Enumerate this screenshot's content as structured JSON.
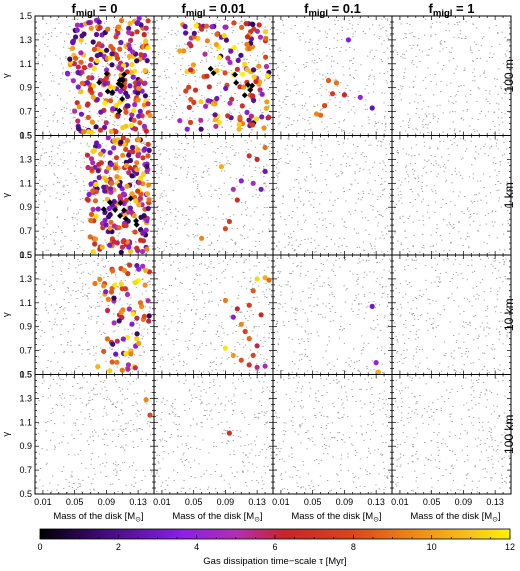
{
  "chart_data": {
    "type": "scatter",
    "column_titles": [
      {
        "base": "f",
        "sub": "migl",
        "rest": " = 0"
      },
      {
        "base": "f",
        "sub": "migl",
        "rest": " = 0.01"
      },
      {
        "base": "f",
        "sub": "migl",
        "rest": " = 0.1"
      },
      {
        "base": "f",
        "sub": "migl",
        "rest": " = 1"
      }
    ],
    "row_titles": [
      "100 m",
      "1 km",
      "10 km",
      "100 km"
    ],
    "xlabel": {
      "main": "Mass of the disk [M",
      "sub": "⊙",
      "close": "]"
    },
    "ylabel": "γ",
    "xlim": [
      0.0,
      0.15
    ],
    "ylim": [
      0.5,
      1.5
    ],
    "x_tick_labels": [
      "0.01",
      "0.05",
      "0.09",
      "0.13"
    ],
    "x_tick_values": [
      0.01,
      0.05,
      0.09,
      0.13
    ],
    "y_tick_labels": [
      "0.5",
      "0.7",
      "0.9",
      "1.1",
      "1.3",
      "1.5"
    ],
    "y_tick_values": [
      0.5,
      0.7,
      0.9,
      1.1,
      1.3,
      1.5
    ],
    "colorbar": {
      "label": "Gas dissipation time−scale τ [Myr]",
      "range": [
        0,
        12
      ],
      "tick_labels": [
        "0",
        "2",
        "4",
        "6",
        "8",
        "10",
        "12"
      ],
      "tick_values": [
        0,
        2,
        4,
        6,
        8,
        10,
        12
      ]
    },
    "panels": [
      {
        "row": 0,
        "col": 0,
        "n_points": 260,
        "x_range": [
          0.04,
          0.145
        ],
        "y_range": [
          0.5,
          1.5
        ],
        "n_diamonds": 12,
        "diamond_x_range": [
          0.075,
          0.12
        ],
        "diamond_y_range": [
          0.7,
          1.05
        ]
      },
      {
        "row": 0,
        "col": 1,
        "n_points": 150,
        "x_range": [
          0.03,
          0.145
        ],
        "y_range": [
          0.55,
          1.45
        ],
        "n_diamonds": 8,
        "diamond_x_range": [
          0.07,
          0.125
        ],
        "diamond_y_range": [
          0.8,
          1.1
        ]
      },
      {
        "row": 0,
        "col": 2,
        "points": [
          [
            0.07,
            0.96
          ],
          [
            0.08,
            0.94
          ],
          [
            0.075,
            0.85
          ],
          [
            0.065,
            0.75
          ],
          [
            0.055,
            0.68
          ],
          [
            0.06,
            0.67
          ],
          [
            0.09,
            0.84
          ],
          [
            0.11,
            0.82
          ],
          [
            0.095,
            1.3
          ],
          [
            0.125,
            0.73
          ]
        ],
        "tau": [
          8.5,
          9.0,
          7.5,
          8.0,
          9.5,
          8.8,
          6.5,
          4.0,
          3.5,
          2.5
        ]
      },
      {
        "row": 0,
        "col": 3,
        "points": [],
        "tau": []
      },
      {
        "row": 1,
        "col": 0,
        "n_points": 240,
        "x_range": [
          0.065,
          0.145
        ],
        "y_range": [
          0.5,
          1.5
        ],
        "n_diamonds": 10,
        "diamond_x_range": [
          0.085,
          0.13
        ],
        "diamond_y_range": [
          0.72,
          1.02
        ]
      },
      {
        "row": 1,
        "col": 1,
        "points": [
          [
            0.085,
            1.24
          ],
          [
            0.12,
            1.33
          ],
          [
            0.13,
            1.3
          ],
          [
            0.11,
            1.12
          ],
          [
            0.125,
            1.1
          ],
          [
            0.135,
            1.05
          ],
          [
            0.14,
            1.4
          ],
          [
            0.1,
            1.05
          ],
          [
            0.105,
            0.96
          ],
          [
            0.095,
            0.78
          ],
          [
            0.09,
            0.72
          ],
          [
            0.06,
            0.64
          ],
          [
            0.14,
            1.2
          ]
        ],
        "tau": [
          10.5,
          7.0,
          6.5,
          3.5,
          4.5,
          3.0,
          9.0,
          5.0,
          6.8,
          7.5,
          8.0,
          9.5,
          2.8
        ]
      },
      {
        "row": 1,
        "col": 2,
        "points": [],
        "tau": []
      },
      {
        "row": 1,
        "col": 3,
        "points": [],
        "tau": []
      },
      {
        "row": 2,
        "col": 0,
        "n_points": 75,
        "x_range": [
          0.075,
          0.145
        ],
        "y_range": [
          0.52,
          1.42
        ],
        "n_diamonds": 0
      },
      {
        "row": 2,
        "col": 1,
        "points": [
          [
            0.13,
            1.3
          ],
          [
            0.14,
            1.31
          ],
          [
            0.145,
            1.29
          ],
          [
            0.125,
            1.2
          ],
          [
            0.12,
            1.08
          ],
          [
            0.135,
            1.0
          ],
          [
            0.11,
            0.92
          ],
          [
            0.115,
            0.86
          ],
          [
            0.12,
            0.8
          ],
          [
            0.13,
            0.74
          ],
          [
            0.09,
            0.72
          ],
          [
            0.1,
            0.66
          ],
          [
            0.11,
            0.62
          ],
          [
            0.12,
            0.58
          ],
          [
            0.13,
            0.56
          ],
          [
            0.14,
            0.57
          ],
          [
            0.09,
            1.12
          ],
          [
            0.1,
            0.98
          ],
          [
            0.105,
            1.05
          ],
          [
            0.125,
            0.66
          ]
        ],
        "tau": [
          11.5,
          10.5,
          9.0,
          8.5,
          7.5,
          6.5,
          9.5,
          7.8,
          8.8,
          6.0,
          11.8,
          10.0,
          8.2,
          7.0,
          5.5,
          4.5,
          9.2,
          3.5,
          6.2,
          8.0
        ]
      },
      {
        "row": 2,
        "col": 2,
        "points": [
          [
            0.125,
            1.07
          ],
          [
            0.13,
            0.6
          ],
          [
            0.133,
            0.52
          ]
        ],
        "tau": [
          3.0,
          3.8,
          10.5
        ]
      },
      {
        "row": 2,
        "col": 3,
        "points": [],
        "tau": []
      },
      {
        "row": 3,
        "col": 0,
        "points": [
          [
            0.14,
            1.29
          ],
          [
            0.145,
            1.16
          ]
        ],
        "tau": [
          9.5,
          8.0
        ]
      },
      {
        "row": 3,
        "col": 1,
        "points": [
          [
            0.095,
            1.01
          ]
        ],
        "tau": [
          7.0
        ]
      },
      {
        "row": 3,
        "col": 2,
        "points": [],
        "tau": []
      },
      {
        "row": 3,
        "col": 3,
        "points": [],
        "tau": []
      }
    ],
    "background_dots_per_panel": 300,
    "grid": false,
    "legend": "colorbar-bottom"
  }
}
